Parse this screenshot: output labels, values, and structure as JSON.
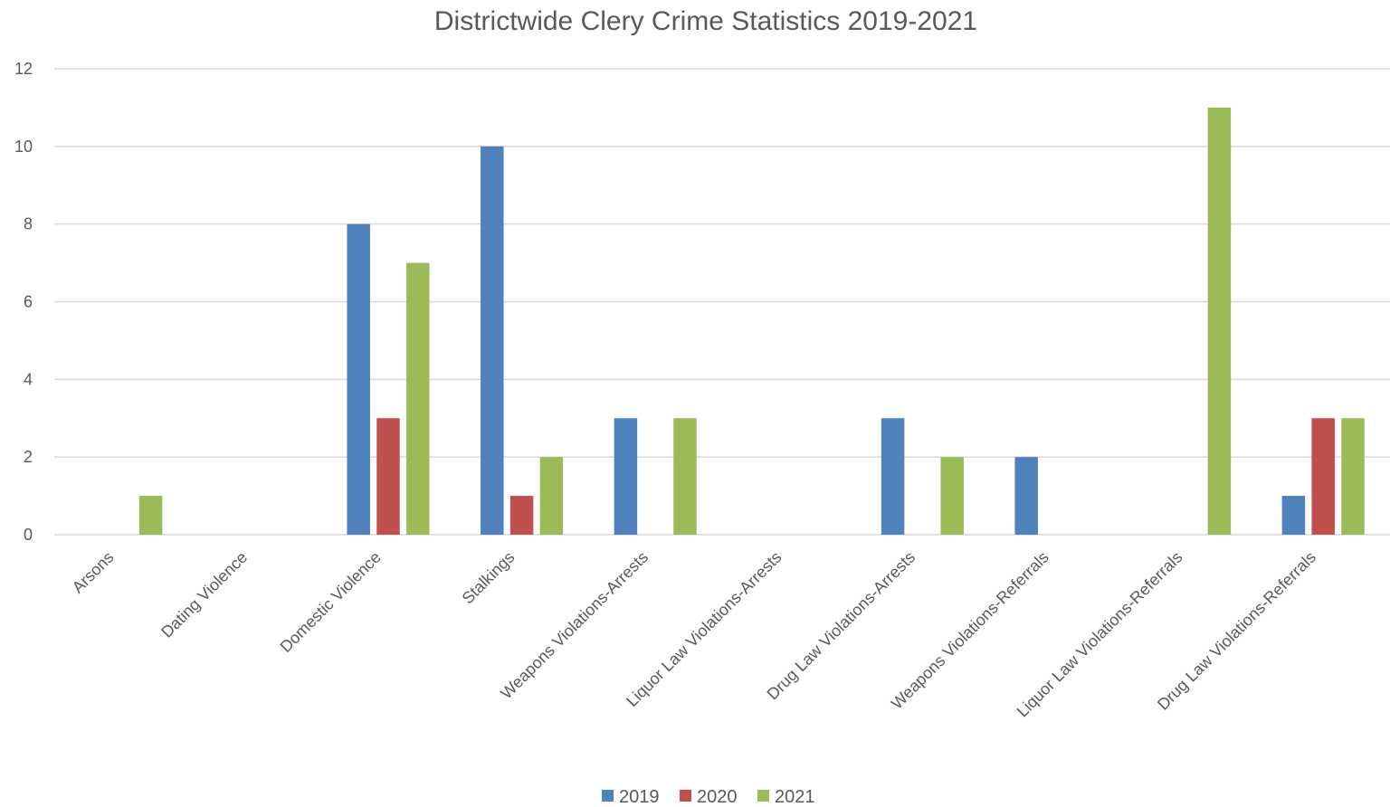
{
  "chart_data": {
    "type": "bar",
    "title": "Districtwide Clery Crime Statistics 2019-2021",
    "xlabel": "",
    "ylabel": "",
    "ylim": [
      0,
      12
    ],
    "yticks": [
      0,
      2,
      4,
      6,
      8,
      10,
      12
    ],
    "grid": true,
    "legend_position": "bottom",
    "categories": [
      "Arsons",
      "Dating Violence",
      "Domestic Violence",
      "Stalkings",
      "Weapons Violations-Arrests",
      "Liquor Law Violations-Arrests",
      "Drug Law Violations-Arrests",
      "Weapons Violations-Referrals",
      "Liquor Law Violations-Referrals",
      "Drug Law Violations-Referrals"
    ],
    "series": [
      {
        "name": "2019",
        "color": "#4f81bd",
        "values": [
          0,
          0,
          8,
          10,
          3,
          0,
          3,
          2,
          0,
          1
        ]
      },
      {
        "name": "2020",
        "color": "#c0504d",
        "values": [
          0,
          0,
          3,
          1,
          0,
          0,
          0,
          0,
          0,
          3
        ]
      },
      {
        "name": "2021",
        "color": "#9bbb59",
        "values": [
          1,
          0,
          7,
          2,
          3,
          0,
          2,
          0,
          11,
          3
        ]
      }
    ]
  }
}
